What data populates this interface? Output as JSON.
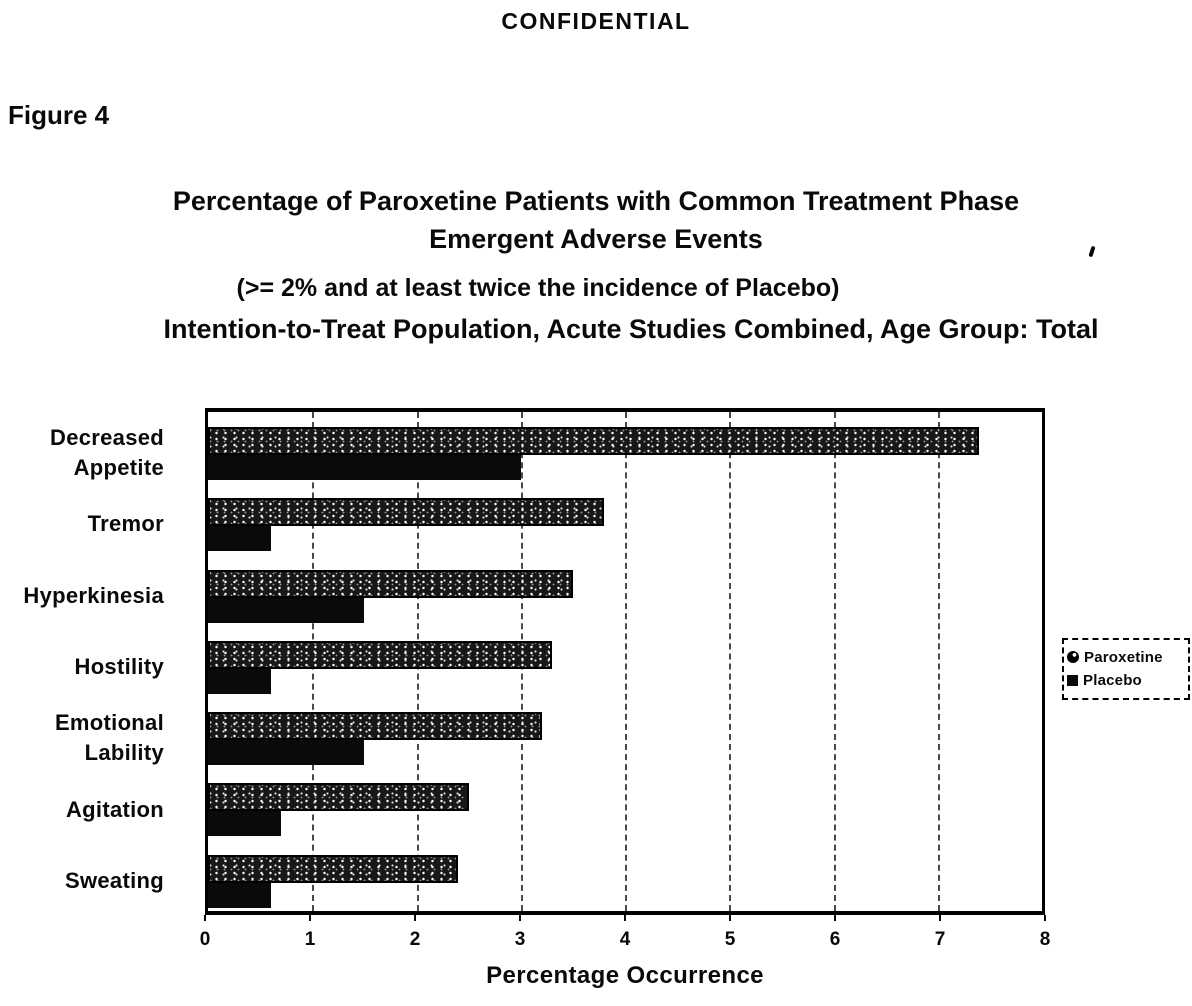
{
  "page": {
    "confidential_banner": "CONFIDENTIAL",
    "figure_label": "Figure 4"
  },
  "chart_data": {
    "type": "bar",
    "orientation": "horizontal",
    "title_line1": "Percentage of Paroxetine Patients with Common Treatment Phase",
    "title_line2": "Emergent Adverse Events",
    "subtitle": "(>= 2% and at least twice the incidence of Placebo)",
    "population_line": "Intention-to-Treat Population, Acute Studies Combined, Age Group: Total",
    "categories": [
      "Decreased Appetite",
      "Tremor",
      "Hyperkinesia",
      "Hostility",
      "Emotional Lability",
      "Agitation",
      "Sweating"
    ],
    "category_label_lines": [
      [
        "Decreased",
        "Appetite"
      ],
      [
        "Tremor"
      ],
      [
        "Hyperkinesia"
      ],
      [
        "Hostility"
      ],
      [
        "Emotional",
        "Lability"
      ],
      [
        "Agitation"
      ],
      [
        "Sweating"
      ]
    ],
    "series": [
      {
        "name": "Paroxetine",
        "values": [
          7.4,
          3.8,
          3.5,
          3.3,
          3.2,
          2.5,
          2.4
        ]
      },
      {
        "name": "Placebo",
        "values": [
          3.0,
          0.6,
          1.5,
          0.6,
          1.5,
          0.7,
          0.6
        ]
      }
    ],
    "xlabel": "Percentage Occurrence",
    "xlim": [
      0,
      8
    ],
    "x_ticks": [
      0,
      1,
      2,
      3,
      4,
      5,
      6,
      7,
      8
    ],
    "grid": "vertical-dashed",
    "legend_position": "right",
    "colors": {
      "ink": "#0a0a0a",
      "paper": "#ffffff"
    }
  }
}
